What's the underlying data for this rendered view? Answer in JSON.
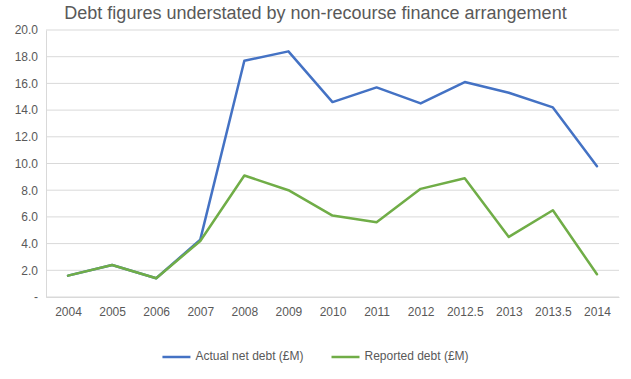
{
  "chart_data": {
    "type": "line",
    "title": "Debt figures understated by non-recourse finance arrangement",
    "categories": [
      "2004",
      "2005",
      "2006",
      "2007",
      "2008",
      "2009",
      "2010",
      "2011",
      "2012",
      "2012.5",
      "2013",
      "2013.5",
      "2014"
    ],
    "series": [
      {
        "name": "Actual net debt (£M)",
        "color": "#4472c4",
        "values": [
          1.6,
          2.4,
          1.4,
          4.3,
          17.7,
          18.4,
          14.6,
          15.7,
          14.5,
          16.1,
          15.3,
          14.2,
          9.8
        ]
      },
      {
        "name": "Reported debt (£M)",
        "color": "#70ad47",
        "values": [
          1.6,
          2.4,
          1.4,
          4.2,
          9.1,
          8.0,
          6.1,
          5.6,
          8.1,
          8.9,
          4.5,
          6.5,
          1.7
        ]
      }
    ],
    "ylim": [
      0,
      20
    ],
    "yticks": [
      {
        "value": 0,
        "label": "-"
      },
      {
        "value": 2,
        "label": "2.0"
      },
      {
        "value": 4,
        "label": "4.0"
      },
      {
        "value": 6,
        "label": "6.0"
      },
      {
        "value": 8,
        "label": "8.0"
      },
      {
        "value": 10,
        "label": "10.0"
      },
      {
        "value": 12,
        "label": "12.0"
      },
      {
        "value": 14,
        "label": "14.0"
      },
      {
        "value": 16,
        "label": "16.0"
      },
      {
        "value": 18,
        "label": "18.0"
      },
      {
        "value": 20,
        "label": "20.0"
      }
    ],
    "grid": true,
    "legend": "bottom"
  }
}
